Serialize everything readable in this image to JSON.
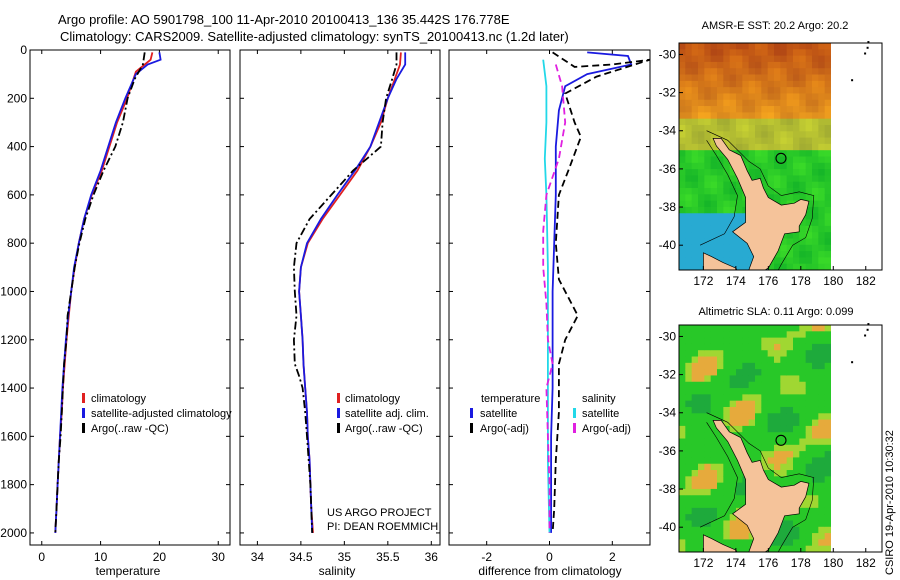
{
  "header": {
    "line1": "Argo profile: AO 5901798_100 11-Apr-2010 20100413_136 35.442S 176.778E",
    "line2": "Climatology: CARS2009. Satellite-adjusted climatology: synTS_20100413.nc (1.2d later)"
  },
  "credit": {
    "project_line1": "US ARGO PROJECT",
    "project_line2": "PI: DEAN ROEMMICH",
    "stamp": "CSIRO 19-Apr-2010 10:30:32"
  },
  "colors": {
    "climatology": "#e02020",
    "satellite": "#1a1ae0",
    "argo": "#000000",
    "salinity_satellite": "#22d8e8",
    "salinity_argo": "#e020e0",
    "land": "#f5c39a"
  },
  "chart_data": [
    {
      "type": "line",
      "id": "temperature",
      "xlabel": "temperature",
      "xlim": [
        -2,
        32
      ],
      "ylim": [
        2050,
        0
      ],
      "xticks": [
        "0",
        "10",
        "20",
        "30"
      ],
      "yticks": [
        "0",
        "200",
        "400",
        "600",
        "800",
        "1000",
        "1200",
        "1400",
        "1600",
        "1800",
        "2000"
      ],
      "legend": [
        "climatology",
        "satellite-adjusted climatology",
        "Argo(..raw -QC)"
      ],
      "series": [
        {
          "name": "climatology",
          "style": "solid",
          "color": "#e02020",
          "points": [
            [
              18.8,
              10
            ],
            [
              18.5,
              40
            ],
            [
              16,
              90
            ],
            [
              14.5,
              200
            ],
            [
              12.8,
              300
            ],
            [
              11.5,
              400
            ],
            [
              10.2,
              500
            ],
            [
              8.5,
              600
            ],
            [
              7.2,
              700
            ],
            [
              6.3,
              800
            ],
            [
              5.6,
              900
            ],
            [
              5,
              1000
            ],
            [
              4.6,
              1100
            ],
            [
              4.2,
              1200
            ],
            [
              3.9,
              1300
            ],
            [
              3.6,
              1400
            ],
            [
              3.4,
              1500
            ],
            [
              3.1,
              1600
            ],
            [
              2.9,
              1700
            ],
            [
              2.7,
              1800
            ],
            [
              2.5,
              1900
            ],
            [
              2.3,
              2000
            ]
          ]
        },
        {
          "name": "satellite-adjusted climatology",
          "style": "solid",
          "color": "#1a1ae0",
          "points": [
            [
              20,
              10
            ],
            [
              20.2,
              40
            ],
            [
              18,
              60
            ],
            [
              16,
              100
            ],
            [
              14.2,
              200
            ],
            [
              12.6,
              300
            ],
            [
              11.3,
              400
            ],
            [
              10,
              500
            ],
            [
              8.4,
              600
            ],
            [
              7.2,
              700
            ],
            [
              6.3,
              800
            ],
            [
              5.5,
              900
            ],
            [
              5,
              1000
            ],
            [
              4.5,
              1100
            ],
            [
              4.1,
              1200
            ],
            [
              3.8,
              1300
            ],
            [
              3.5,
              1400
            ],
            [
              3.3,
              1500
            ],
            [
              3.1,
              1600
            ],
            [
              2.9,
              1700
            ],
            [
              2.7,
              1800
            ],
            [
              2.5,
              1900
            ],
            [
              2.3,
              2000
            ]
          ]
        },
        {
          "name": "Argo(..raw -QC)",
          "style": "dashdot",
          "color": "#000000",
          "points": [
            [
              17.5,
              10
            ],
            [
              17.2,
              60
            ],
            [
              15.8,
              120
            ],
            [
              14.6,
              200
            ],
            [
              13.8,
              300
            ],
            [
              12.5,
              400
            ],
            [
              10.5,
              500
            ],
            [
              8.8,
              600
            ],
            [
              7.4,
              700
            ],
            [
              6.4,
              800
            ],
            [
              5.6,
              900
            ],
            [
              5,
              1000
            ],
            [
              4.4,
              1100
            ],
            [
              4.2,
              1200
            ],
            [
              3.8,
              1300
            ],
            [
              3.6,
              1400
            ],
            [
              3.4,
              1500
            ],
            [
              3.2,
              1600
            ],
            [
              2.9,
              1700
            ],
            [
              2.7,
              1800
            ],
            [
              2.5,
              1900
            ],
            [
              2.3,
              2000
            ]
          ]
        }
      ]
    },
    {
      "type": "line",
      "id": "salinity",
      "xlabel": "salinity",
      "xlim": [
        33.8,
        36.1
      ],
      "ylim": [
        2050,
        0
      ],
      "xticks": [
        "34",
        "34.5",
        "35",
        "35.5",
        "36"
      ],
      "legend": [
        "climatology",
        "satellite adj. clim.",
        "Argo(..raw -QC)"
      ],
      "series": [
        {
          "name": "climatology",
          "style": "solid",
          "color": "#e02020",
          "points": [
            [
              35.65,
              10
            ],
            [
              35.64,
              60
            ],
            [
              35.58,
              120
            ],
            [
              35.5,
              200
            ],
            [
              35.42,
              300
            ],
            [
              35.3,
              400
            ],
            [
              35.15,
              500
            ],
            [
              34.95,
              600
            ],
            [
              34.75,
              700
            ],
            [
              34.58,
              800
            ],
            [
              34.5,
              900
            ],
            [
              34.48,
              1000
            ],
            [
              34.5,
              1100
            ],
            [
              34.52,
              1200
            ],
            [
              34.53,
              1300
            ],
            [
              34.55,
              1400
            ],
            [
              34.57,
              1500
            ],
            [
              34.58,
              1600
            ],
            [
              34.6,
              1700
            ],
            [
              34.61,
              1800
            ],
            [
              34.62,
              1900
            ],
            [
              34.64,
              2000
            ]
          ]
        },
        {
          "name": "satellite adj. clim.",
          "style": "solid",
          "color": "#1a1ae0",
          "points": [
            [
              35.7,
              10
            ],
            [
              35.7,
              60
            ],
            [
              35.6,
              120
            ],
            [
              35.5,
              200
            ],
            [
              35.4,
              300
            ],
            [
              35.3,
              400
            ],
            [
              35.12,
              500
            ],
            [
              34.92,
              600
            ],
            [
              34.73,
              700
            ],
            [
              34.57,
              800
            ],
            [
              34.5,
              900
            ],
            [
              34.48,
              1000
            ],
            [
              34.5,
              1100
            ],
            [
              34.52,
              1200
            ],
            [
              34.53,
              1300
            ],
            [
              34.55,
              1400
            ],
            [
              34.57,
              1500
            ],
            [
              34.58,
              1600
            ],
            [
              34.6,
              1700
            ],
            [
              34.61,
              1800
            ],
            [
              34.62,
              1900
            ],
            [
              34.63,
              2000
            ]
          ]
        },
        {
          "name": "Argo(..raw -QC)",
          "style": "dashdot",
          "color": "#000000",
          "points": [
            [
              35.6,
              10
            ],
            [
              35.6,
              60
            ],
            [
              35.55,
              120
            ],
            [
              35.48,
              200
            ],
            [
              35.44,
              300
            ],
            [
              35.42,
              400
            ],
            [
              35.1,
              500
            ],
            [
              34.85,
              600
            ],
            [
              34.6,
              700
            ],
            [
              34.45,
              800
            ],
            [
              34.42,
              900
            ],
            [
              34.43,
              1000
            ],
            [
              34.45,
              1100
            ],
            [
              34.42,
              1200
            ],
            [
              34.43,
              1300
            ],
            [
              34.48,
              1350
            ],
            [
              34.52,
              1400
            ],
            [
              34.55,
              1500
            ],
            [
              34.57,
              1600
            ],
            [
              34.59,
              1700
            ],
            [
              34.61,
              1800
            ],
            [
              34.62,
              1900
            ],
            [
              34.63,
              2000
            ]
          ]
        }
      ]
    },
    {
      "type": "line",
      "id": "difference",
      "xlabel": "difference from climatology",
      "xlim": [
        -3.2,
        3.2
      ],
      "ylim": [
        2050,
        0
      ],
      "xticks": [
        "-2",
        "0",
        "2"
      ],
      "legend_groups": [
        {
          "heading": "temperature",
          "entries": [
            "satellite",
            "Argo(-adj)"
          ]
        },
        {
          "heading": "salinity",
          "entries": [
            "satellite",
            "Argo(-adj)"
          ]
        }
      ],
      "series": [
        {
          "name": "temperature satellite",
          "style": "solid",
          "color": "#1a1ae0",
          "points": [
            [
              1.2,
              10
            ],
            [
              2.5,
              25
            ],
            [
              2.6,
              60
            ],
            [
              1.2,
              100
            ],
            [
              0.5,
              150
            ],
            [
              0.3,
              250
            ],
            [
              0.2,
              400
            ],
            [
              0.2,
              600
            ],
            [
              0.15,
              800
            ],
            [
              0.1,
              1000
            ],
            [
              0.1,
              1200
            ],
            [
              0.1,
              1400
            ],
            [
              0.05,
              1600
            ],
            [
              0.05,
              1800
            ],
            [
              0.05,
              2000
            ]
          ]
        },
        {
          "name": "temperature Argo(-adj)",
          "style": "dashed",
          "color": "#000000",
          "points": [
            [
              0.1,
              10
            ],
            [
              0.8,
              70
            ],
            [
              2,
              60
            ],
            [
              3.2,
              40
            ],
            [
              1.5,
              110
            ],
            [
              0.5,
              180
            ],
            [
              0.8,
              300
            ],
            [
              1.0,
              360
            ],
            [
              0.6,
              500
            ],
            [
              0.3,
              600
            ],
            [
              0.2,
              800
            ],
            [
              0.3,
              950
            ],
            [
              0.7,
              1050
            ],
            [
              0.9,
              1100
            ],
            [
              0.5,
              1200
            ],
            [
              0.3,
              1300
            ],
            [
              0.3,
              1500
            ],
            [
              0.2,
              1700
            ],
            [
              0.15,
              1900
            ],
            [
              0.1,
              2000
            ]
          ]
        },
        {
          "name": "salinity satellite",
          "style": "solid",
          "color": "#22d8e8",
          "points": [
            [
              -0.2,
              40
            ],
            [
              -0.1,
              150
            ],
            [
              -0.1,
              300
            ],
            [
              -0.15,
              450
            ],
            [
              -0.1,
              600
            ],
            [
              -0.05,
              900
            ],
            [
              -0.05,
              1100
            ],
            [
              -0.05,
              1400
            ],
            [
              -0.05,
              1700
            ],
            [
              0,
              2000
            ]
          ]
        },
        {
          "name": "salinity Argo(-adj)",
          "style": "dashed",
          "color": "#e020e0",
          "points": [
            [
              0.2,
              60
            ],
            [
              0.4,
              150
            ],
            [
              0.5,
              300
            ],
            [
              0.3,
              450
            ],
            [
              -0.1,
              600
            ],
            [
              -0.2,
              750
            ],
            [
              -0.2,
              900
            ],
            [
              -0.1,
              1050
            ],
            [
              -0.05,
              1200
            ],
            [
              0.1,
              1300
            ],
            [
              -0.1,
              1400
            ],
            [
              -0.05,
              1600
            ],
            [
              0,
              1800
            ],
            [
              0,
              2000
            ]
          ]
        }
      ]
    },
    {
      "type": "heatmap",
      "id": "sst-map",
      "title": "AMSR-E SST: 20.2  Argo: 20.2",
      "xlim": [
        170.5,
        183
      ],
      "ylim": [
        -41.3,
        -29.4
      ],
      "xticks": [
        "172",
        "174",
        "176",
        "178",
        "180",
        "182"
      ],
      "yticks": [
        "-30",
        "-32",
        "-34",
        "-36",
        "-38",
        "-40"
      ],
      "argo_position": [
        176.778,
        -35.442
      ]
    },
    {
      "type": "heatmap",
      "id": "sla-map",
      "title": "Altimetric SLA: 0.11  Argo: 0.099",
      "xlim": [
        170.5,
        183
      ],
      "ylim": [
        -41.3,
        -29.4
      ],
      "xticks": [
        "172",
        "174",
        "176",
        "178",
        "180",
        "182"
      ],
      "yticks": [
        "-30",
        "-32",
        "-34",
        "-36",
        "-38",
        "-40"
      ],
      "argo_position": [
        176.778,
        -35.442
      ]
    }
  ]
}
